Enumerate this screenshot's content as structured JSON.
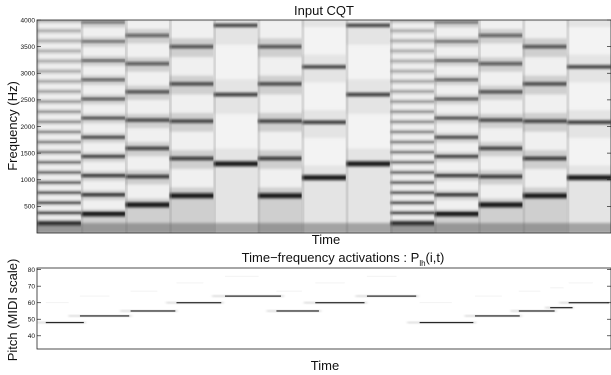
{
  "chart_data": [
    {
      "type": "heatmap",
      "title": "Input CQT",
      "xlabel": "Time",
      "ylabel": "Frequency (Hz)",
      "ylim": [
        0,
        4000
      ],
      "yticks": [
        500,
        1000,
        1500,
        2000,
        2500,
        3000,
        3500,
        4000
      ],
      "colormap": "grayscale-inverted",
      "notes": [
        {
          "segment": 1,
          "fundamental_hz": 190
        },
        {
          "segment": 2,
          "fundamental_hz": 360
        },
        {
          "segment": 3,
          "fundamental_hz": 530
        },
        {
          "segment": 4,
          "fundamental_hz": 700
        },
        {
          "segment": 5,
          "fundamental_hz": 1300
        },
        {
          "segment": 6,
          "fundamental_hz": 700
        },
        {
          "segment": 7,
          "fundamental_hz": 1040
        },
        {
          "segment": 8,
          "fundamental_hz": 1300
        },
        {
          "segment": 9,
          "fundamental_hz": 190
        },
        {
          "segment": 10,
          "fundamental_hz": 360
        },
        {
          "segment": 11,
          "fundamental_hz": 530
        },
        {
          "segment": 12,
          "fundamental_hz": 700
        },
        {
          "segment": 13,
          "fundamental_hz": 1040
        }
      ]
    },
    {
      "type": "heatmap",
      "title_main": "Time−frequency activations : P",
      "title_sub": "lh",
      "title_tail": "(i,t)",
      "xlabel": "Time",
      "ylabel": "Pitch (MIDI scale)",
      "ylim": [
        32,
        81
      ],
      "yticks": [
        40,
        50,
        60,
        70,
        80
      ],
      "notes": [
        {
          "start": 0.0,
          "end": 0.085,
          "pitch": 48
        },
        {
          "start": 0.055,
          "end": 0.165,
          "pitch": 52
        },
        {
          "start": 0.145,
          "end": 0.245,
          "pitch": 55
        },
        {
          "start": 0.225,
          "end": 0.325,
          "pitch": 60
        },
        {
          "start": 0.305,
          "end": 0.43,
          "pitch": 64
        },
        {
          "start": 0.4,
          "end": 0.495,
          "pitch": 55
        },
        {
          "start": 0.465,
          "end": 0.575,
          "pitch": 60
        },
        {
          "start": 0.555,
          "end": 0.665,
          "pitch": 64
        },
        {
          "start": 0.645,
          "end": 0.765,
          "pitch": 48
        },
        {
          "start": 0.745,
          "end": 0.845,
          "pitch": 52
        },
        {
          "start": 0.825,
          "end": 0.905,
          "pitch": 55
        },
        {
          "start": 0.885,
          "end": 0.935,
          "pitch": 57
        },
        {
          "start": 0.91,
          "end": 1.0,
          "pitch": 60
        }
      ]
    }
  ]
}
